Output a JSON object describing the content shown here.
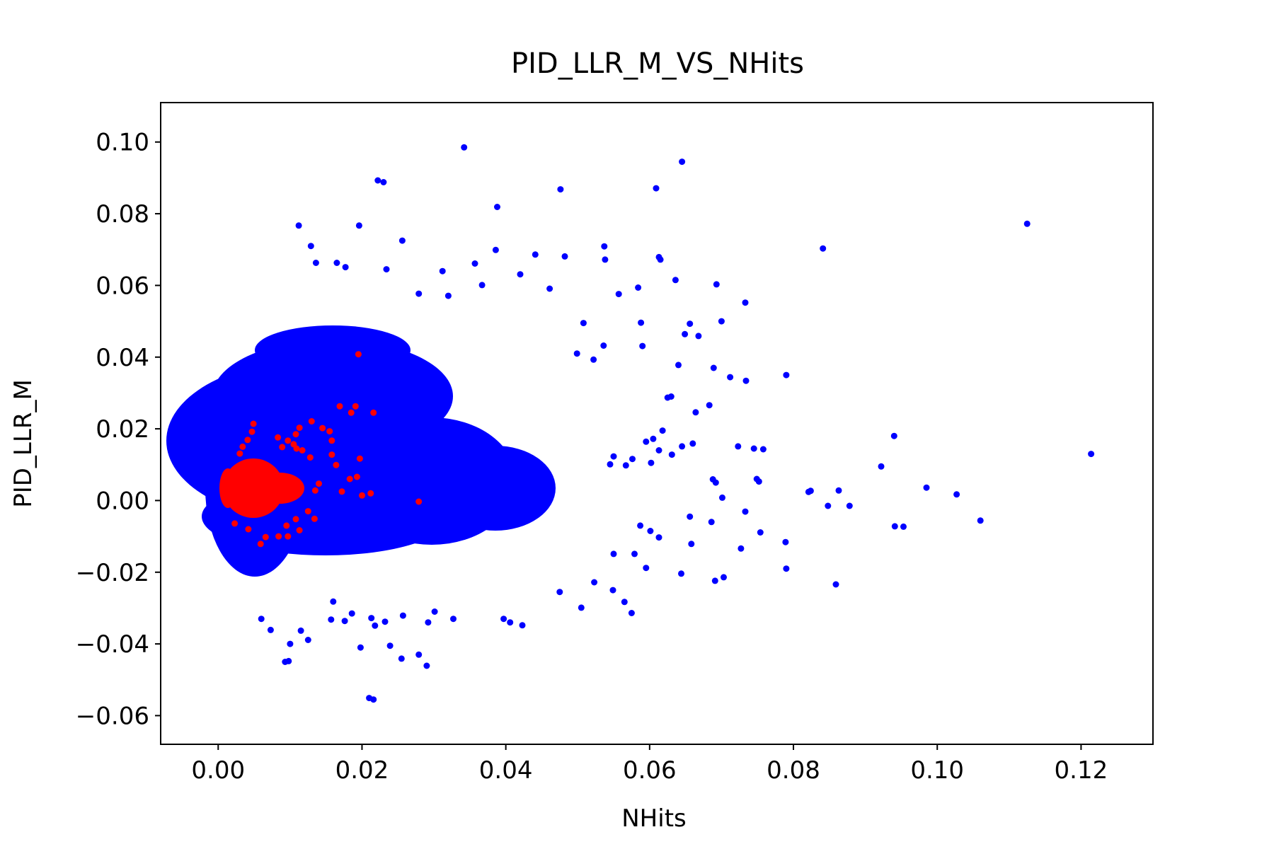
{
  "chart_data": {
    "type": "scatter",
    "title": "PID_LLR_M_VS_NHits",
    "xlabel": "NHits",
    "ylabel": "PID_LLR_M",
    "xlim": [
      -0.008,
      0.13
    ],
    "ylim": [
      -0.068,
      0.111
    ],
    "x_ticks": [
      0.0,
      0.02,
      0.04,
      0.06,
      0.08,
      0.1,
      0.12
    ],
    "x_tick_labels": [
      "0.00",
      "0.02",
      "0.04",
      "0.06",
      "0.08",
      "0.10",
      "0.12"
    ],
    "y_ticks": [
      -0.06,
      -0.04,
      -0.02,
      0.0,
      0.02,
      0.04,
      0.06,
      0.08,
      0.1
    ],
    "y_tick_labels": [
      "−0.06",
      "−0.04",
      "−0.02",
      "0.00",
      "0.02",
      "0.04",
      "0.06",
      "0.08",
      "0.10"
    ],
    "grid": false,
    "legend": "none",
    "series": [
      {
        "color": "#0000ff",
        "points": [
          [
            0.0342,
            0.0985
          ],
          [
            0.0645,
            0.0945
          ],
          [
            0.0222,
            0.0893
          ],
          [
            0.023,
            0.0888
          ],
          [
            0.0476,
            0.0868
          ],
          [
            0.0609,
            0.0871
          ],
          [
            0.0388,
            0.0819
          ],
          [
            0.0112,
            0.0767
          ],
          [
            0.0196,
            0.0767
          ],
          [
            0.1125,
            0.0772
          ],
          [
            0.0129,
            0.071
          ],
          [
            0.0256,
            0.0725
          ],
          [
            0.0386,
            0.0699
          ],
          [
            0.0537,
            0.0709
          ],
          [
            0.0841,
            0.0703
          ],
          [
            0.0538,
            0.0672
          ],
          [
            0.0613,
            0.0679
          ],
          [
            0.0615,
            0.0672
          ],
          [
            0.0482,
            0.0681
          ],
          [
            0.0441,
            0.0686
          ],
          [
            0.0357,
            0.0661
          ],
          [
            0.0234,
            0.0645
          ],
          [
            0.0165,
            0.0663
          ],
          [
            0.0136,
            0.0663
          ],
          [
            0.0177,
            0.0651
          ],
          [
            0.0312,
            0.064
          ],
          [
            0.042,
            0.0631
          ],
          [
            0.0636,
            0.0615
          ],
          [
            0.0693,
            0.0603
          ],
          [
            0.0584,
            0.0594
          ],
          [
            0.0557,
            0.0576
          ],
          [
            0.0461,
            0.0591
          ],
          [
            0.0367,
            0.0601
          ],
          [
            0.032,
            0.0571
          ],
          [
            0.0279,
            0.0577
          ],
          [
            0.0733,
            0.0552
          ],
          [
            0.0656,
            0.0493
          ],
          [
            0.07,
            0.05
          ],
          [
            0.0588,
            0.0496
          ],
          [
            0.0508,
            0.0495
          ],
          [
            0.0734,
            0.0334
          ],
          [
            0.079,
            0.035
          ],
          [
            0.064,
            0.0378
          ],
          [
            0.0689,
            0.037
          ],
          [
            0.0668,
            0.0459
          ],
          [
            0.0649,
            0.0464
          ],
          [
            0.0536,
            0.0432
          ],
          [
            0.059,
            0.0431
          ],
          [
            0.0522,
            0.0393
          ],
          [
            0.0499,
            0.041
          ],
          [
            0.0712,
            0.0344
          ],
          [
            0.063,
            0.029
          ],
          [
            0.0683,
            0.0266
          ],
          [
            0.0625,
            0.0287
          ],
          [
            0.0664,
            0.0246
          ],
          [
            0.0618,
            0.0195
          ],
          [
            0.0645,
            0.0151
          ],
          [
            0.066,
            0.0159
          ],
          [
            0.0723,
            0.0151
          ],
          [
            0.0745,
            0.0145
          ],
          [
            0.0758,
            0.0143
          ],
          [
            0.0605,
            0.0172
          ],
          [
            0.0613,
            0.014
          ],
          [
            0.0631,
            0.0128
          ],
          [
            0.0595,
            0.0164
          ],
          [
            0.055,
            0.0123
          ],
          [
            0.0576,
            0.0116
          ],
          [
            0.0602,
            0.0105
          ],
          [
            0.0567,
            0.0098
          ],
          [
            0.0545,
            0.0101
          ],
          [
            0.0821,
            0.0024
          ],
          [
            0.0824,
            0.0027
          ],
          [
            0.0863,
            0.0028
          ],
          [
            0.0848,
            -0.0015
          ],
          [
            0.0878,
            -0.0015
          ],
          [
            0.0922,
            0.0095
          ],
          [
            0.094,
            0.018
          ],
          [
            0.0985,
            0.0036
          ],
          [
            0.1027,
            0.0017
          ],
          [
            0.106,
            -0.0056
          ],
          [
            0.0941,
            -0.0072
          ],
          [
            0.0953,
            -0.0073
          ],
          [
            0.1214,
            0.013
          ],
          [
            0.0749,
            0.006
          ],
          [
            0.0752,
            0.0053
          ],
          [
            0.0754,
            -0.0089
          ],
          [
            0.0733,
            -0.0031
          ],
          [
            0.0701,
            0.0008
          ],
          [
            0.0688,
            0.0059
          ],
          [
            0.0692,
            0.005
          ],
          [
            0.0656,
            -0.0045
          ],
          [
            0.0686,
            -0.006
          ],
          [
            0.0658,
            -0.0121
          ],
          [
            0.0727,
            -0.0134
          ],
          [
            0.0789,
            -0.0116
          ],
          [
            0.079,
            -0.019
          ],
          [
            0.0859,
            -0.0234
          ],
          [
            0.0703,
            -0.0214
          ],
          [
            0.0691,
            -0.0224
          ],
          [
            0.0644,
            -0.0204
          ],
          [
            0.0613,
            -0.0103
          ],
          [
            0.0601,
            -0.0085
          ],
          [
            0.0587,
            -0.007
          ],
          [
            0.0579,
            -0.0149
          ],
          [
            0.0595,
            -0.0188
          ],
          [
            0.055,
            -0.0149
          ],
          [
            0.0565,
            -0.0283
          ],
          [
            0.0575,
            -0.0314
          ],
          [
            0.0549,
            -0.025
          ],
          [
            0.0523,
            -0.0228
          ],
          [
            0.0505,
            -0.0299
          ],
          [
            0.0475,
            -0.0255
          ],
          [
            0.0406,
            -0.034
          ],
          [
            0.0397,
            -0.033
          ],
          [
            0.0423,
            -0.0348
          ],
          [
            0.0327,
            -0.033
          ],
          [
            0.0292,
            -0.034
          ],
          [
            0.0301,
            -0.031
          ],
          [
            0.0257,
            -0.0321
          ],
          [
            0.0232,
            -0.0338
          ],
          [
            0.0255,
            -0.0441
          ],
          [
            0.029,
            -0.0461
          ],
          [
            0.0279,
            -0.043
          ],
          [
            0.0239,
            -0.0405
          ],
          [
            0.0218,
            -0.0349
          ],
          [
            0.0198,
            -0.041
          ],
          [
            0.0176,
            -0.0336
          ],
          [
            0.0157,
            -0.0332
          ],
          [
            0.0125,
            -0.0389
          ],
          [
            0.0115,
            -0.0363
          ],
          [
            0.01,
            -0.04
          ],
          [
            0.0093,
            -0.045
          ],
          [
            0.0098,
            -0.0448
          ],
          [
            0.0073,
            -0.0361
          ],
          [
            0.006,
            -0.033
          ],
          [
            0.021,
            -0.0551
          ],
          [
            0.0216,
            -0.0555
          ],
          [
            0.0213,
            -0.0328
          ],
          [
            0.0186,
            -0.0315
          ],
          [
            0.016,
            -0.0282
          ]
        ]
      },
      {
        "color": "#ff0000",
        "points": [
          [
            0.0195,
            0.0408
          ],
          [
            0.0216,
            0.0245
          ],
          [
            0.0191,
            0.0263
          ],
          [
            0.0185,
            0.0245
          ],
          [
            0.0169,
            0.0263
          ],
          [
            0.0155,
            0.0193
          ],
          [
            0.0158,
            0.0167
          ],
          [
            0.0145,
            0.0202
          ],
          [
            0.013,
            0.0221
          ],
          [
            0.0113,
            0.0203
          ],
          [
            0.0108,
            0.0185
          ],
          [
            0.0105,
            0.0157
          ],
          [
            0.0109,
            0.0145
          ],
          [
            0.0117,
            0.014
          ],
          [
            0.0128,
            0.012
          ],
          [
            0.0049,
            0.0214
          ],
          [
            0.0047,
            0.0192
          ],
          [
            0.0041,
            0.0169
          ],
          [
            0.0034,
            0.015
          ],
          [
            0.003,
            0.0131
          ],
          [
            0.0097,
            0.0167
          ],
          [
            0.0089,
            0.0149
          ],
          [
            0.0083,
            0.0176
          ],
          [
            0.0197,
            0.0117
          ],
          [
            0.0193,
            0.0066
          ],
          [
            0.02,
            0.0014
          ],
          [
            0.0212,
            0.002
          ],
          [
            0.0172,
            0.0025
          ],
          [
            0.0183,
            0.006
          ],
          [
            0.0164,
            0.0099
          ],
          [
            0.0158,
            0.0128
          ],
          [
            0.014,
            0.0047
          ],
          [
            0.0135,
            0.0028
          ],
          [
            0.0279,
            -0.0003
          ],
          [
            0.0125,
            -0.003
          ],
          [
            0.0108,
            -0.0052
          ],
          [
            0.0095,
            -0.007
          ],
          [
            0.0097,
            -0.01
          ],
          [
            0.0084,
            -0.01
          ],
          [
            0.0066,
            -0.0102
          ],
          [
            0.0059,
            -0.0121
          ],
          [
            0.0042,
            -0.008
          ],
          [
            0.0023,
            -0.0064
          ],
          [
            0.0134,
            -0.0051
          ],
          [
            0.0113,
            -0.0083
          ]
        ]
      }
    ]
  }
}
